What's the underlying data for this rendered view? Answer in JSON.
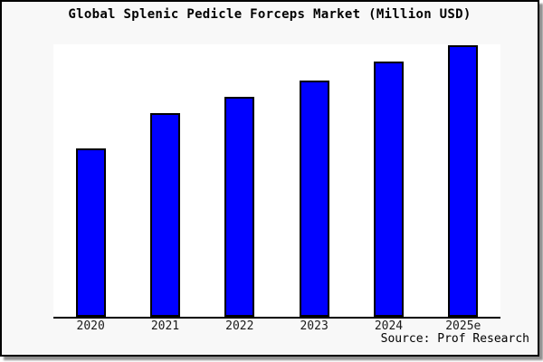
{
  "chart_data": {
    "type": "bar",
    "title": "Global Splenic Pedicle Forceps Market (Million USD)",
    "categories": [
      "2020",
      "2021",
      "2022",
      "2023",
      "2024",
      "2025e"
    ],
    "values": [
      62,
      75,
      81,
      87,
      94,
      100
    ],
    "xlabel": "",
    "ylabel": "",
    "ylim": [
      0,
      100.5
    ],
    "y_axis_visible": false,
    "grid": false,
    "legend": false,
    "source_note": "Source: Prof Research"
  },
  "colors": {
    "bar_fill": "#0000ff",
    "bar_border": "#000000",
    "figure_bg": "#f8f8f8",
    "plot_bg": "#ffffff",
    "axis_line": "#000000",
    "frame_border": "#000000",
    "shadow": "#8f8f8f",
    "text": "#000000"
  }
}
